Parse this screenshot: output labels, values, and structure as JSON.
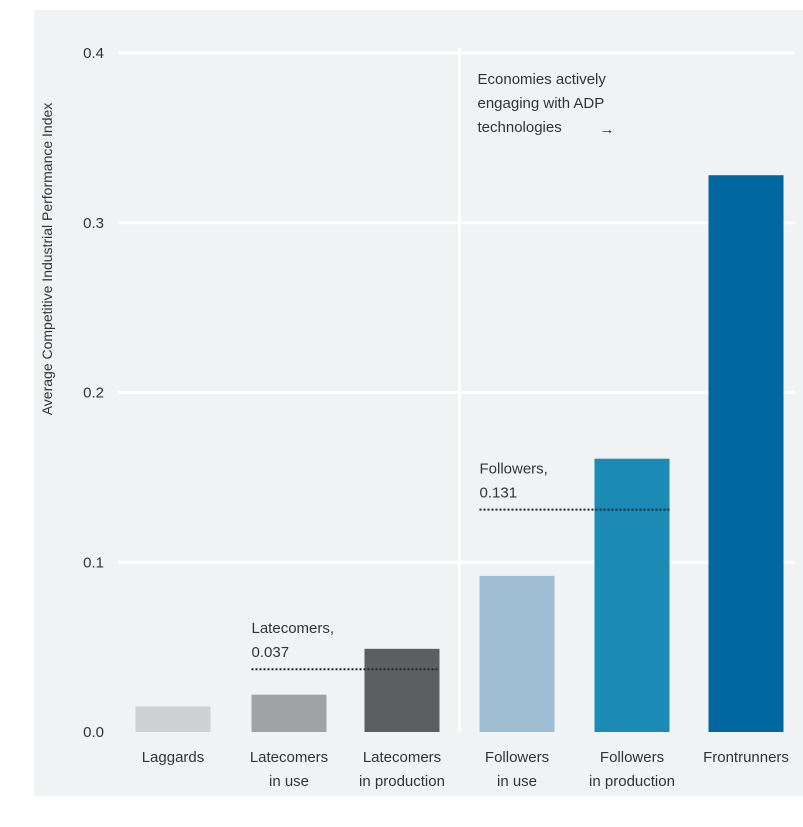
{
  "chart_data": {
    "type": "bar",
    "ylabel": "Average Competitive Industrial Performance Index",
    "ylim": [
      0,
      0.4
    ],
    "yticks": [
      "0.0",
      "0.1",
      "0.2",
      "0.3",
      "0.4"
    ],
    "grid": true,
    "categories": [
      [
        "Laggards"
      ],
      [
        "Latecomers",
        "in use"
      ],
      [
        "Latecomers",
        "in production"
      ],
      [
        "Followers",
        "in use"
      ],
      [
        "Followers",
        "in production"
      ],
      [
        "Frontrunners"
      ]
    ],
    "values": [
      0.015,
      0.022,
      0.049,
      0.092,
      0.161,
      0.328
    ],
    "colors": [
      "#cfd0d1",
      "#a0a2a5",
      "#5d5e60",
      "#9fbdd3",
      "#1b8ab5",
      "#00679f"
    ],
    "background_color": "#f1f2f3",
    "reference_lines": [
      {
        "label": [
          "Latecomers,",
          "0.037"
        ],
        "value": 0.037,
        "from_category": 1,
        "to_category": 2
      },
      {
        "label": [
          "Followers,",
          "0.131"
        ],
        "value": 0.131,
        "from_category": 3,
        "to_category": 4
      }
    ],
    "annotation": {
      "lines": [
        "Economies actively",
        "engaging with ADP",
        "technologies"
      ],
      "arrow": "→",
      "divider_after_category": 2
    }
  }
}
